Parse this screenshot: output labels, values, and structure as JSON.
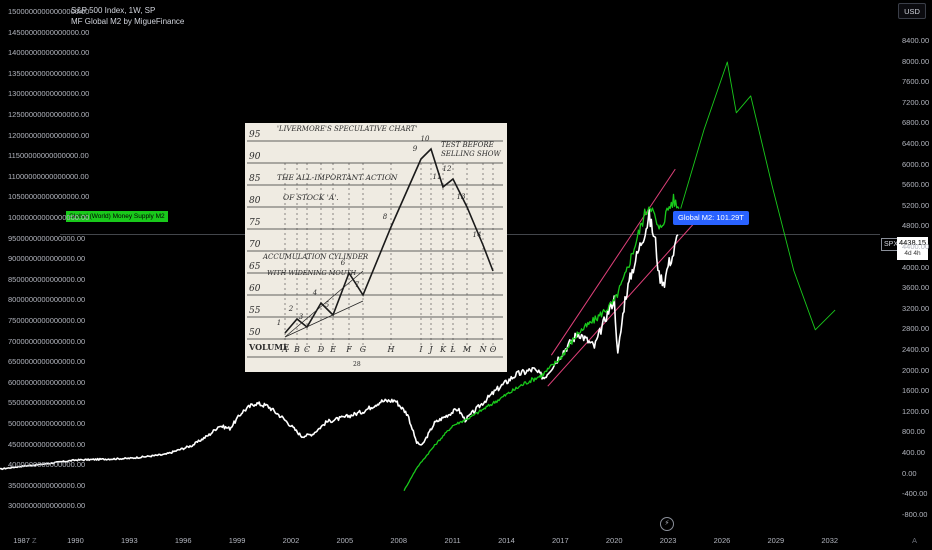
{
  "header": {
    "title": "S&P 500 Index, 1W, SP",
    "subtitle": "MF Global M2 by MigueFinance"
  },
  "currency_button": "USD",
  "left_label": "Global (World) Money Supply M2",
  "m2_tag": "Global M2: 101.29T",
  "spx_symbol": "SPX",
  "spx_price": "4438.15",
  "spx_countdown": "4d 4h",
  "corner_left": "Z",
  "corner_right": "A",
  "footer_icon": "bolt-icon",
  "colors": {
    "background": "#000000",
    "spx_line": "#ffffff",
    "m2_line": "#19c91b",
    "trend_line": "#e0407a",
    "projection": "#19c91b",
    "tag_blue": "#2962ff",
    "text": "#b2b5be"
  },
  "sketch": {
    "title": "'LIVERMORE'S SPECULATIVE CHART'",
    "annotation_top": "TEST BEFORE SELLING SHOW",
    "annotation_mid_1": "THE ALL-IMPORTANT ACTION",
    "annotation_mid_2": "OF STOCK 'A'.",
    "annotation_low_1": "ACCUMULATION CYLINDER",
    "annotation_low_2": "WITH WIDENING MOUTH",
    "volume": "VOLUME",
    "page": "28",
    "y_labels": [
      "95",
      "90",
      "85",
      "80",
      "75",
      "70",
      "65",
      "60",
      "55",
      "50"
    ],
    "x_labels": [
      "A",
      "B",
      "C",
      "D",
      "E",
      "F",
      "G",
      "H",
      "I",
      "J",
      "K",
      "L",
      "M",
      "N",
      "O"
    ],
    "point_labels": [
      "1",
      "2",
      "3",
      "4",
      "5",
      "6",
      "7",
      "8",
      "9",
      "10",
      "11",
      "12",
      "13",
      "14"
    ]
  },
  "chart_data": {
    "type": "line",
    "title": "S&P 500 Index, 1W, SP",
    "x_ticks": [
      "1987",
      "1990",
      "1993",
      "1996",
      "1999",
      "2002",
      "2005",
      "2008",
      "2011",
      "2014",
      "2017",
      "2020",
      "2023",
      "2026",
      "2029",
      "2032"
    ],
    "y_left_ticks": [
      "15000000000000000.00",
      "14500000000000000.00",
      "14000000000000000.00",
      "13500000000000000.00",
      "13000000000000000.00",
      "12500000000000000.00",
      "12000000000000000.00",
      "11500000000000000.00",
      "11000000000000000.00",
      "10500000000000000.00",
      "10000000000000000.00",
      "9500000000000000.00",
      "9000000000000000.00",
      "8500000000000000.00",
      "8000000000000000.00",
      "7500000000000000.00",
      "7000000000000000.00",
      "6500000000000000.00",
      "6000000000000000.00",
      "5500000000000000.00",
      "5000000000000000.00",
      "4500000000000000.00",
      "4000000000000000.00",
      "3500000000000000.00",
      "3000000000000000.00"
    ],
    "y_right_ticks": [
      "8400.00",
      "8000.00",
      "7600.00",
      "7200.00",
      "6800.00",
      "6400.00",
      "6000.00",
      "5600.00",
      "5200.00",
      "4800.00",
      "4400.00",
      "4000.00",
      "3600.00",
      "3200.00",
      "2800.00",
      "2400.00",
      "2000.00",
      "1600.00",
      "1200.00",
      "800.00",
      "400.00",
      "0.00",
      "-400.00",
      "-800.00"
    ],
    "y_right_range": [
      -800,
      8600
    ],
    "x_range": [
      1985.8,
      2034.8
    ],
    "series": [
      {
        "name": "SPX",
        "axis": "right",
        "points": [
          [
            1985.8,
            280
          ],
          [
            1987.0,
            330
          ],
          [
            1988.0,
            360
          ],
          [
            1990.0,
            440
          ],
          [
            1991.0,
            450
          ],
          [
            1993.0,
            470
          ],
          [
            1995.0,
            540
          ],
          [
            1996.5,
            700
          ],
          [
            1997.5,
            900
          ],
          [
            1998.0,
            1050
          ],
          [
            1998.6,
            1000
          ],
          [
            1999.3,
            1300
          ],
          [
            2000.0,
            1450
          ],
          [
            2000.7,
            1400
          ],
          [
            2001.5,
            1200
          ],
          [
            2002.0,
            1050
          ],
          [
            2002.6,
            860
          ],
          [
            2003.2,
            900
          ],
          [
            2004.0,
            1120
          ],
          [
            2005.0,
            1200
          ],
          [
            2006.0,
            1300
          ],
          [
            2007.0,
            1480
          ],
          [
            2007.8,
            1500
          ],
          [
            2008.5,
            1250
          ],
          [
            2009.0,
            750
          ],
          [
            2009.3,
            700
          ],
          [
            2010.0,
            1100
          ],
          [
            2011.3,
            1350
          ],
          [
            2011.7,
            1150
          ],
          [
            2012.5,
            1400
          ],
          [
            2013.5,
            1700
          ],
          [
            2014.5,
            1950
          ],
          [
            2015.5,
            2050
          ],
          [
            2016.1,
            1900
          ],
          [
            2017.0,
            2300
          ],
          [
            2018.0,
            2700
          ],
          [
            2018.9,
            2450
          ],
          [
            2019.5,
            2950
          ],
          [
            2020.0,
            3300
          ],
          [
            2020.2,
            2300
          ],
          [
            2020.6,
            3300
          ],
          [
            2021.0,
            3800
          ],
          [
            2021.5,
            4300
          ],
          [
            2021.95,
            4750
          ],
          [
            2022.3,
            4300
          ],
          [
            2022.5,
            3700
          ],
          [
            2022.8,
            3600
          ],
          [
            2023.0,
            3900
          ],
          [
            2023.3,
            4100
          ],
          [
            2023.55,
            4438
          ]
        ]
      },
      {
        "name": "MF Global M2",
        "axis": "right",
        "points": [
          [
            2008.3,
            -100
          ],
          [
            2009.0,
            300
          ],
          [
            2010.0,
            700
          ],
          [
            2011.0,
            1050
          ],
          [
            2012.0,
            1200
          ],
          [
            2013.0,
            1400
          ],
          [
            2014.0,
            1600
          ],
          [
            2015.0,
            1800
          ],
          [
            2016.0,
            1950
          ],
          [
            2017.0,
            2250
          ],
          [
            2018.0,
            2700
          ],
          [
            2019.0,
            2950
          ],
          [
            2020.0,
            3250
          ],
          [
            2020.6,
            3700
          ],
          [
            2021.0,
            4100
          ],
          [
            2021.7,
            4800
          ],
          [
            2022.0,
            5000
          ],
          [
            2022.5,
            4500
          ],
          [
            2023.0,
            4900
          ],
          [
            2023.3,
            5050
          ],
          [
            2023.6,
            4900
          ]
        ]
      },
      {
        "name": "M2 projection",
        "axis": "right",
        "points": [
          [
            2023.7,
            4900
          ],
          [
            2025.0,
            6300
          ],
          [
            2026.3,
            7500
          ],
          [
            2026.8,
            6600
          ],
          [
            2027.6,
            6900
          ],
          [
            2028.8,
            5300
          ],
          [
            2030.0,
            3800
          ],
          [
            2031.2,
            2750
          ],
          [
            2032.3,
            3100
          ]
        ]
      }
    ],
    "trendlines": [
      {
        "name": "upper",
        "points": [
          [
            2016.5,
            2300
          ],
          [
            2023.4,
            5600
          ]
        ]
      },
      {
        "name": "lower",
        "points": [
          [
            2016.3,
            1750
          ],
          [
            2024.9,
            4800
          ]
        ]
      }
    ],
    "reference_line_value": 4438.15
  }
}
